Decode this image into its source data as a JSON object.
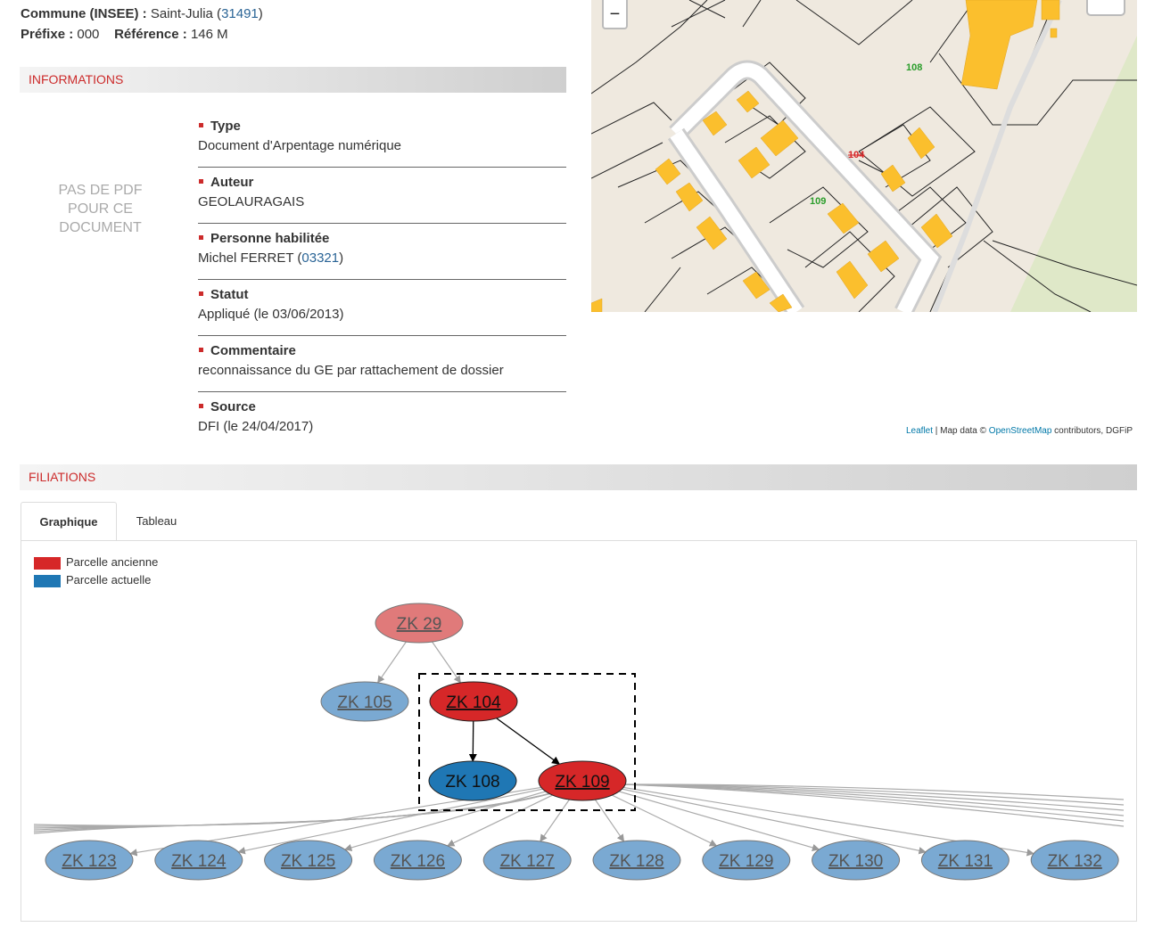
{
  "header": {
    "commune_label": "Commune (INSEE) :",
    "commune_name": "Saint-Julia (",
    "commune_code": "31491",
    "commune_close": ")",
    "prefixe_label": "Préfixe :",
    "prefixe_value": "000",
    "reference_label": "Référence :",
    "reference_value": "146 M"
  },
  "informations": {
    "title": "INFORMATIONS",
    "no_pdf": [
      "PAS DE PDF",
      "POUR CE",
      "DOCUMENT"
    ],
    "items": [
      {
        "label": "Type",
        "value": "Document d'Arpentage numérique"
      },
      {
        "label": "Auteur",
        "value": "GEOLAURAGAIS"
      },
      {
        "label": "Personne habilitée",
        "value": "Michel FERRET (",
        "link": "03321",
        "suffix": ")"
      },
      {
        "label": "Statut",
        "value": "Appliqué (le 03/06/2013)"
      },
      {
        "label": "Commentaire",
        "value": "reconnaissance du GE par rattachement de dossier"
      },
      {
        "label": "Source",
        "value": "DFI (le 24/04/2017)"
      }
    ]
  },
  "map": {
    "zoom_out": "−",
    "parcel_labels": {
      "p108": "108",
      "p104": "104",
      "p109": "109"
    },
    "attribution": {
      "leaflet": "Leaflet",
      "sep": " | Map data © ",
      "osm": "OpenStreetMap",
      "rest": " contributors, DGFiP"
    }
  },
  "filiations": {
    "title": "FILIATIONS",
    "tabs": [
      {
        "label": "Graphique",
        "active": true
      },
      {
        "label": "Tableau",
        "active": false
      }
    ],
    "legend": [
      {
        "label": "Parcelle ancienne",
        "color": "#d62728"
      },
      {
        "label": "Parcelle actuelle",
        "color": "#1f77b4"
      }
    ],
    "graph": {
      "nodes": [
        {
          "id": "ZK 29",
          "state": "ancienne",
          "faded": true
        },
        {
          "id": "ZK 105",
          "state": "actuelle",
          "faded": true
        },
        {
          "id": "ZK 104",
          "state": "ancienne",
          "faded": false
        },
        {
          "id": "ZK 108",
          "state": "actuelle",
          "faded": false
        },
        {
          "id": "ZK 109",
          "state": "ancienne",
          "faded": false
        },
        {
          "id": "ZK 123",
          "state": "actuelle",
          "faded": true
        },
        {
          "id": "ZK 124",
          "state": "actuelle",
          "faded": true
        },
        {
          "id": "ZK 125",
          "state": "actuelle",
          "faded": true
        },
        {
          "id": "ZK 126",
          "state": "actuelle",
          "faded": true
        },
        {
          "id": "ZK 127",
          "state": "actuelle",
          "faded": true
        },
        {
          "id": "ZK 128",
          "state": "actuelle",
          "faded": true
        },
        {
          "id": "ZK 129",
          "state": "actuelle",
          "faded": true
        },
        {
          "id": "ZK 130",
          "state": "actuelle",
          "faded": true
        },
        {
          "id": "ZK 131",
          "state": "actuelle",
          "faded": true
        },
        {
          "id": "ZK 132",
          "state": "actuelle",
          "faded": true
        }
      ],
      "edges": [
        [
          "ZK 29",
          "ZK 105"
        ],
        [
          "ZK 29",
          "ZK 104"
        ],
        [
          "ZK 104",
          "ZK 108"
        ],
        [
          "ZK 104",
          "ZK 109"
        ],
        [
          "ZK 109",
          "ZK 123"
        ],
        [
          "ZK 109",
          "ZK 124"
        ],
        [
          "ZK 109",
          "ZK 125"
        ],
        [
          "ZK 109",
          "ZK 126"
        ],
        [
          "ZK 109",
          "ZK 127"
        ],
        [
          "ZK 109",
          "ZK 128"
        ],
        [
          "ZK 109",
          "ZK 129"
        ],
        [
          "ZK 109",
          "ZK 130"
        ],
        [
          "ZK 109",
          "ZK 131"
        ],
        [
          "ZK 109",
          "ZK 132"
        ]
      ]
    }
  }
}
